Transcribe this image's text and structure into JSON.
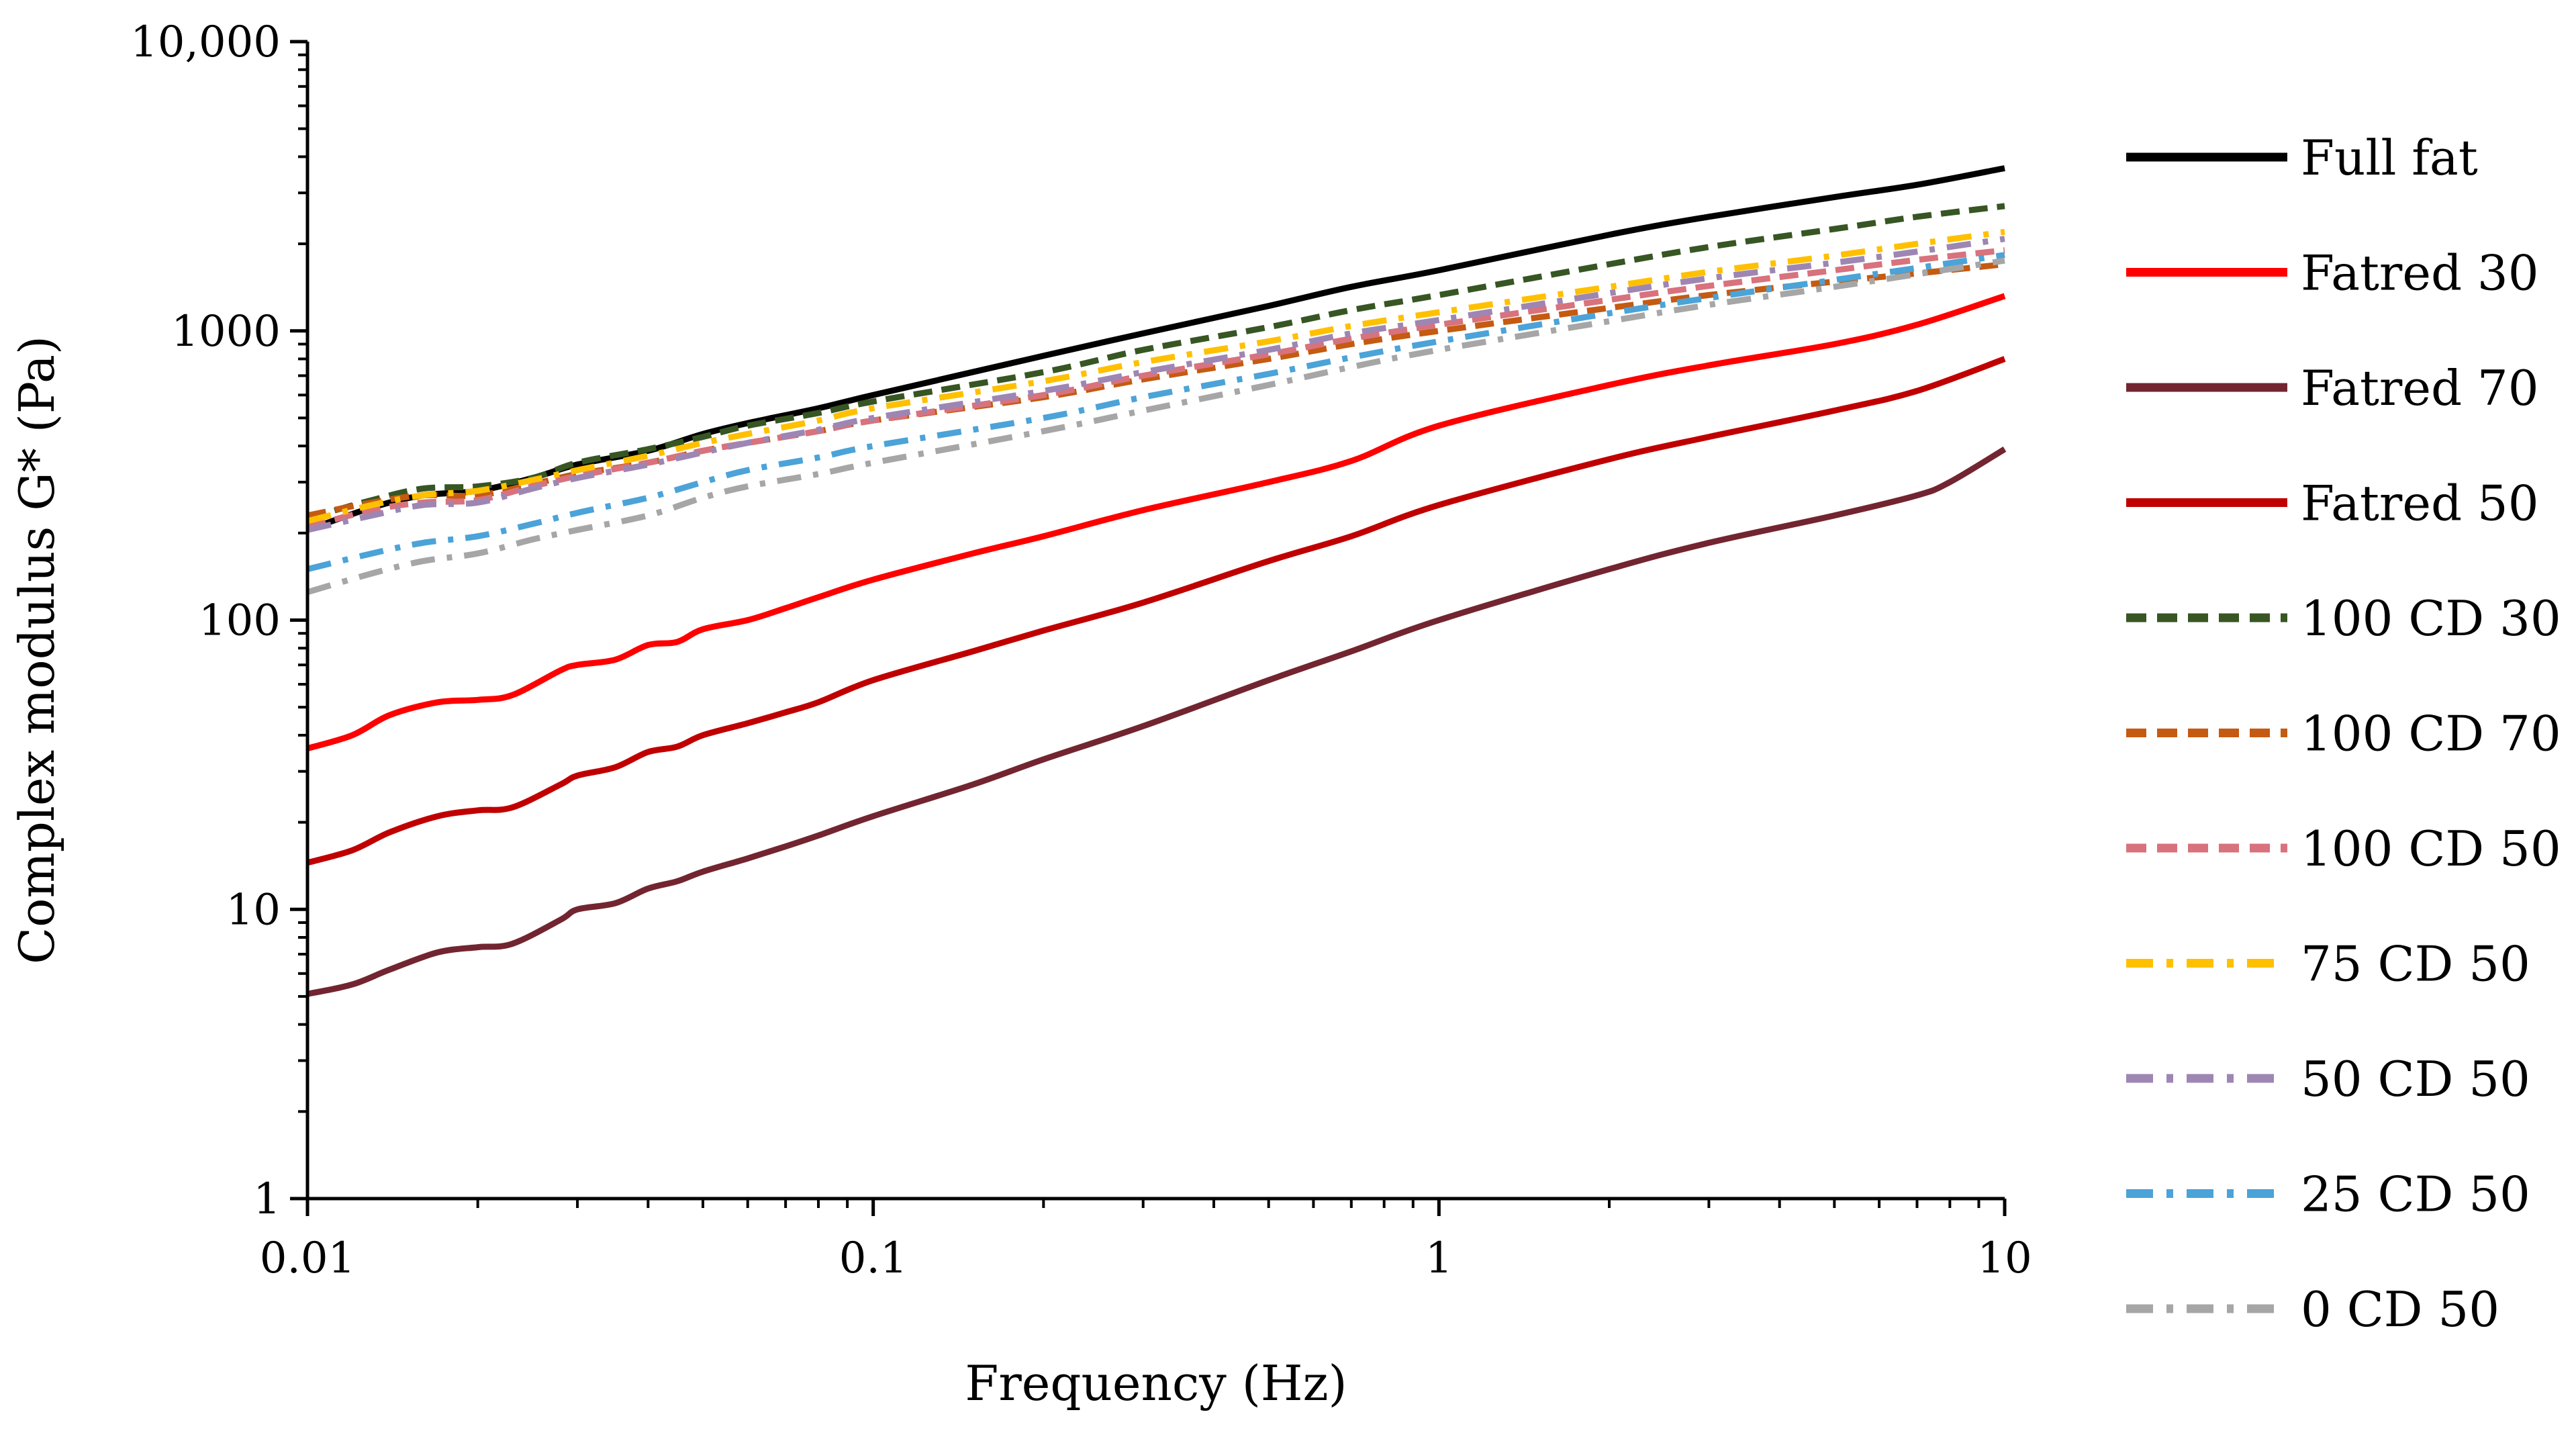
{
  "chart_data": {
    "type": "line",
    "title": "",
    "xlabel": "Frequency (Hz)",
    "ylabel": "Complex modulus G* (Pa)",
    "xscale": "log",
    "yscale": "log",
    "xlim": [
      0.01,
      10
    ],
    "ylim": [
      1,
      10000
    ],
    "x_ticks": [
      0.01,
      0.1,
      1,
      10
    ],
    "x_tick_labels": [
      "0.01",
      "0.1",
      "1",
      "10"
    ],
    "y_ticks": [
      1,
      10,
      100,
      1000,
      10000
    ],
    "y_tick_labels": [
      "1",
      "10",
      "100",
      "1000",
      "10,000"
    ],
    "grid": false,
    "legend_position": "right",
    "series": [
      {
        "name": "Full fat",
        "color": "#000000",
        "dash": "solid",
        "points": [
          [
            0.01,
            205
          ],
          [
            0.013,
            245
          ],
          [
            0.016,
            270
          ],
          [
            0.02,
            280
          ],
          [
            0.025,
            310
          ],
          [
            0.03,
            345
          ],
          [
            0.04,
            385
          ],
          [
            0.05,
            440
          ],
          [
            0.06,
            480
          ],
          [
            0.08,
            540
          ],
          [
            0.1,
            600
          ],
          [
            0.2,
            820
          ],
          [
            0.3,
            980
          ],
          [
            0.5,
            1220
          ],
          [
            0.7,
            1420
          ],
          [
            1,
            1620
          ],
          [
            2,
            2150
          ],
          [
            3,
            2480
          ],
          [
            5,
            2900
          ],
          [
            7,
            3200
          ],
          [
            10,
            3650
          ]
        ]
      },
      {
        "name": "Fatred 30",
        "color": "#ff0000",
        "dash": "solid",
        "points": [
          [
            0.01,
            36
          ],
          [
            0.012,
            40
          ],
          [
            0.014,
            47
          ],
          [
            0.017,
            52
          ],
          [
            0.02,
            53
          ],
          [
            0.023,
            55
          ],
          [
            0.028,
            67
          ],
          [
            0.03,
            70
          ],
          [
            0.035,
            73
          ],
          [
            0.04,
            82
          ],
          [
            0.045,
            84
          ],
          [
            0.05,
            93
          ],
          [
            0.06,
            100
          ],
          [
            0.07,
            110
          ],
          [
            0.08,
            120
          ],
          [
            0.1,
            138
          ],
          [
            0.15,
            170
          ],
          [
            0.2,
            195
          ],
          [
            0.3,
            240
          ],
          [
            0.5,
            300
          ],
          [
            0.7,
            355
          ],
          [
            1,
            470
          ],
          [
            2,
            650
          ],
          [
            3,
            760
          ],
          [
            5,
            900
          ],
          [
            7,
            1050
          ],
          [
            10,
            1320
          ]
        ]
      },
      {
        "name": "Fatred 70",
        "color": "#722530",
        "dash": "solid",
        "points": [
          [
            0.01,
            5.1
          ],
          [
            0.012,
            5.5
          ],
          [
            0.014,
            6.2
          ],
          [
            0.017,
            7.1
          ],
          [
            0.02,
            7.4
          ],
          [
            0.023,
            7.6
          ],
          [
            0.028,
            9.2
          ],
          [
            0.03,
            10
          ],
          [
            0.035,
            10.5
          ],
          [
            0.04,
            11.8
          ],
          [
            0.045,
            12.5
          ],
          [
            0.05,
            13.5
          ],
          [
            0.06,
            15
          ],
          [
            0.07,
            16.5
          ],
          [
            0.08,
            18
          ],
          [
            0.1,
            21
          ],
          [
            0.15,
            27
          ],
          [
            0.2,
            33
          ],
          [
            0.3,
            43
          ],
          [
            0.5,
            62
          ],
          [
            0.7,
            78
          ],
          [
            1,
            100
          ],
          [
            2,
            150
          ],
          [
            3,
            185
          ],
          [
            5,
            230
          ],
          [
            7,
            270
          ],
          [
            8,
            300
          ],
          [
            10,
            390
          ]
        ]
      },
      {
        "name": "Fatred 50",
        "color": "#c00000",
        "dash": "solid",
        "points": [
          [
            0.01,
            14.5
          ],
          [
            0.012,
            16
          ],
          [
            0.014,
            18.5
          ],
          [
            0.017,
            21
          ],
          [
            0.02,
            22
          ],
          [
            0.023,
            22.5
          ],
          [
            0.028,
            27
          ],
          [
            0.03,
            29
          ],
          [
            0.035,
            31
          ],
          [
            0.04,
            35
          ],
          [
            0.045,
            36.5
          ],
          [
            0.05,
            40
          ],
          [
            0.06,
            44
          ],
          [
            0.07,
            48
          ],
          [
            0.08,
            52
          ],
          [
            0.1,
            62
          ],
          [
            0.15,
            78
          ],
          [
            0.2,
            92
          ],
          [
            0.3,
            115
          ],
          [
            0.5,
            160
          ],
          [
            0.7,
            195
          ],
          [
            1,
            250
          ],
          [
            2,
            360
          ],
          [
            3,
            430
          ],
          [
            5,
            530
          ],
          [
            7,
            620
          ],
          [
            10,
            800
          ]
        ]
      },
      {
        "name": "100 CD 30",
        "color": "#375623",
        "dash": "dash",
        "points": [
          [
            0.01,
            225
          ],
          [
            0.013,
            260
          ],
          [
            0.016,
            285
          ],
          [
            0.02,
            290
          ],
          [
            0.025,
            310
          ],
          [
            0.03,
            350
          ],
          [
            0.04,
            390
          ],
          [
            0.05,
            430
          ],
          [
            0.06,
            470
          ],
          [
            0.08,
            520
          ],
          [
            0.1,
            570
          ],
          [
            0.2,
            720
          ],
          [
            0.3,
            860
          ],
          [
            0.5,
            1030
          ],
          [
            0.7,
            1180
          ],
          [
            1,
            1330
          ],
          [
            2,
            1700
          ],
          [
            3,
            1950
          ],
          [
            5,
            2250
          ],
          [
            7,
            2480
          ],
          [
            10,
            2700
          ]
        ]
      },
      {
        "name": "100 CD 70",
        "color": "#c55a11",
        "dash": "dash",
        "points": [
          [
            0.01,
            230
          ],
          [
            0.013,
            255
          ],
          [
            0.016,
            270
          ],
          [
            0.02,
            270
          ],
          [
            0.025,
            295
          ],
          [
            0.03,
            320
          ],
          [
            0.04,
            350
          ],
          [
            0.05,
            385
          ],
          [
            0.06,
            410
          ],
          [
            0.08,
            450
          ],
          [
            0.1,
            490
          ],
          [
            0.2,
            590
          ],
          [
            0.3,
            680
          ],
          [
            0.5,
            800
          ],
          [
            0.7,
            900
          ],
          [
            1,
            1000
          ],
          [
            2,
            1200
          ],
          [
            3,
            1330
          ],
          [
            5,
            1480
          ],
          [
            7,
            1580
          ],
          [
            10,
            1700
          ]
        ]
      },
      {
        "name": "100 CD 50",
        "color": "#d8727d",
        "dash": "dash",
        "points": [
          [
            0.01,
            210
          ],
          [
            0.013,
            240
          ],
          [
            0.016,
            255
          ],
          [
            0.02,
            260
          ],
          [
            0.025,
            290
          ],
          [
            0.03,
            315
          ],
          [
            0.04,
            350
          ],
          [
            0.05,
            385
          ],
          [
            0.06,
            410
          ],
          [
            0.08,
            450
          ],
          [
            0.1,
            490
          ],
          [
            0.2,
            600
          ],
          [
            0.3,
            700
          ],
          [
            0.5,
            830
          ],
          [
            0.7,
            940
          ],
          [
            1,
            1050
          ],
          [
            2,
            1280
          ],
          [
            3,
            1430
          ],
          [
            5,
            1620
          ],
          [
            7,
            1760
          ],
          [
            10,
            1900
          ]
        ]
      },
      {
        "name": "75 CD 50",
        "color": "#ffc000",
        "dash": "dashdot",
        "points": [
          [
            0.01,
            220
          ],
          [
            0.013,
            250
          ],
          [
            0.016,
            270
          ],
          [
            0.02,
            280
          ],
          [
            0.025,
            305
          ],
          [
            0.03,
            330
          ],
          [
            0.04,
            370
          ],
          [
            0.05,
            410
          ],
          [
            0.06,
            440
          ],
          [
            0.08,
            490
          ],
          [
            0.1,
            540
          ],
          [
            0.2,
            670
          ],
          [
            0.3,
            780
          ],
          [
            0.5,
            920
          ],
          [
            0.7,
            1040
          ],
          [
            1,
            1160
          ],
          [
            2,
            1420
          ],
          [
            3,
            1600
          ],
          [
            5,
            1820
          ],
          [
            7,
            2000
          ],
          [
            10,
            2200
          ]
        ]
      },
      {
        "name": "50 CD 50",
        "color": "#9e86b3",
        "dash": "dashdot",
        "points": [
          [
            0.01,
            205
          ],
          [
            0.013,
            230
          ],
          [
            0.016,
            250
          ],
          [
            0.02,
            255
          ],
          [
            0.025,
            285
          ],
          [
            0.03,
            310
          ],
          [
            0.04,
            345
          ],
          [
            0.05,
            380
          ],
          [
            0.06,
            410
          ],
          [
            0.08,
            455
          ],
          [
            0.1,
            500
          ],
          [
            0.2,
            620
          ],
          [
            0.3,
            720
          ],
          [
            0.5,
            860
          ],
          [
            0.7,
            980
          ],
          [
            1,
            1090
          ],
          [
            2,
            1350
          ],
          [
            3,
            1520
          ],
          [
            5,
            1720
          ],
          [
            7,
            1880
          ],
          [
            10,
            2080
          ]
        ]
      },
      {
        "name": "25 CD 50",
        "color": "#4ba3d8",
        "dash": "dashdot",
        "points": [
          [
            0.01,
            150
          ],
          [
            0.013,
            170
          ],
          [
            0.016,
            185
          ],
          [
            0.02,
            195
          ],
          [
            0.025,
            215
          ],
          [
            0.03,
            235
          ],
          [
            0.04,
            265
          ],
          [
            0.05,
            300
          ],
          [
            0.06,
            330
          ],
          [
            0.08,
            365
          ],
          [
            0.1,
            400
          ],
          [
            0.2,
            500
          ],
          [
            0.3,
            590
          ],
          [
            0.5,
            710
          ],
          [
            0.7,
            810
          ],
          [
            1,
            920
          ],
          [
            2,
            1150
          ],
          [
            3,
            1300
          ],
          [
            5,
            1500
          ],
          [
            7,
            1650
          ],
          [
            10,
            1830
          ]
        ]
      },
      {
        "name": "0 CD 50",
        "color": "#a6a6a6",
        "dash": "dashdot",
        "points": [
          [
            0.01,
            125
          ],
          [
            0.013,
            145
          ],
          [
            0.016,
            160
          ],
          [
            0.02,
            170
          ],
          [
            0.025,
            190
          ],
          [
            0.03,
            205
          ],
          [
            0.04,
            230
          ],
          [
            0.05,
            265
          ],
          [
            0.06,
            290
          ],
          [
            0.08,
            320
          ],
          [
            0.1,
            350
          ],
          [
            0.2,
            450
          ],
          [
            0.3,
            530
          ],
          [
            0.5,
            650
          ],
          [
            0.7,
            750
          ],
          [
            1,
            860
          ],
          [
            2,
            1080
          ],
          [
            3,
            1230
          ],
          [
            5,
            1420
          ],
          [
            7,
            1570
          ],
          [
            10,
            1750
          ]
        ]
      }
    ]
  }
}
